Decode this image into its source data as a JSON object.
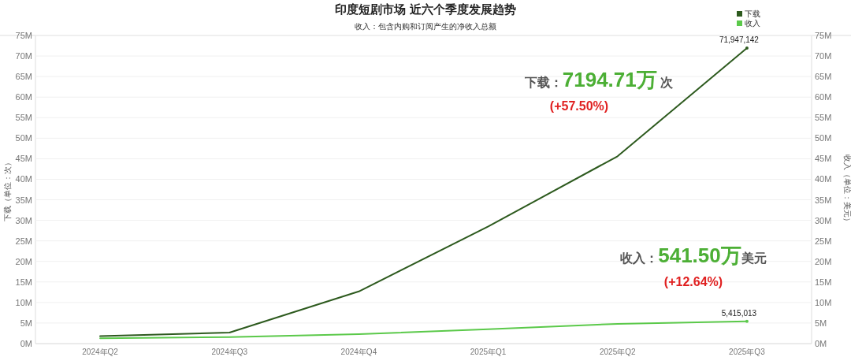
{
  "chart_data": {
    "type": "line",
    "title": "印度短剧市场 近六个季度发展趋势",
    "subtitle": "收入：包含内购和订阅产生的净收入总额",
    "ylabel": "下载（单位：次）",
    "y2label": "收入（单位：美元）",
    "categories": [
      "2024年Q2",
      "2024年Q3",
      "2024年Q4",
      "2025年Q1",
      "2025年Q2",
      "2025年Q3"
    ],
    "series": [
      {
        "name": "下载",
        "color": "#2d5a1e",
        "values": [
          1800000,
          2700000,
          12700000,
          28500000,
          45600000,
          71947142
        ],
        "value_labels": [
          null,
          null,
          null,
          null,
          null,
          "71,947,142"
        ]
      },
      {
        "name": "收入",
        "color": "#5bc94a",
        "values": [
          1300000,
          1600000,
          2300000,
          3500000,
          4800000,
          5415013
        ],
        "value_labels": [
          null,
          null,
          null,
          null,
          null,
          "5,415,013"
        ]
      }
    ],
    "ylim": [
      0,
      75000000
    ],
    "y2lim": [
      0,
      75000000
    ],
    "yticks": [
      {
        "value": 0,
        "label": "0M"
      },
      {
        "value": 5000000,
        "label": "5M"
      },
      {
        "value": 10000000,
        "label": "10M"
      },
      {
        "value": 15000000,
        "label": "15M"
      },
      {
        "value": 20000000,
        "label": "20M"
      },
      {
        "value": 25000000,
        "label": "25M"
      },
      {
        "value": 30000000,
        "label": "30M"
      },
      {
        "value": 35000000,
        "label": "35M"
      },
      {
        "value": 40000000,
        "label": "40M"
      },
      {
        "value": 45000000,
        "label": "45M"
      },
      {
        "value": 50000000,
        "label": "50M"
      },
      {
        "value": 55000000,
        "label": "55M"
      },
      {
        "value": 60000000,
        "label": "60M"
      },
      {
        "value": 65000000,
        "label": "65M"
      },
      {
        "value": 70000000,
        "label": "70M"
      },
      {
        "value": 75000000,
        "label": "75M"
      }
    ],
    "y2ticks": [
      {
        "value": 0,
        "label": "0M"
      },
      {
        "value": 5000000,
        "label": "5M"
      },
      {
        "value": 10000000,
        "label": "10M"
      },
      {
        "value": 15000000,
        "label": "15M"
      },
      {
        "value": 20000000,
        "label": "20M"
      },
      {
        "value": 25000000,
        "label": "25M"
      },
      {
        "value": 30000000,
        "label": "30M"
      },
      {
        "value": 35000000,
        "label": "35M"
      },
      {
        "value": 40000000,
        "label": "40M"
      },
      {
        "value": 45000000,
        "label": "45M"
      },
      {
        "value": 50000000,
        "label": "50M"
      },
      {
        "value": 55000000,
        "label": "55M"
      },
      {
        "value": 60000000,
        "label": "60M"
      },
      {
        "value": 65000000,
        "label": "65M"
      },
      {
        "value": 70000000,
        "label": "70M"
      },
      {
        "value": 75000000,
        "label": "75M"
      }
    ],
    "grid": "y",
    "legend": "top right",
    "line_style": "solid",
    "annotations": [
      "下载：7194.71万 次",
      "(+57.50%)",
      "收入：541.50万美元",
      "(+12.64%)"
    ]
  }
}
